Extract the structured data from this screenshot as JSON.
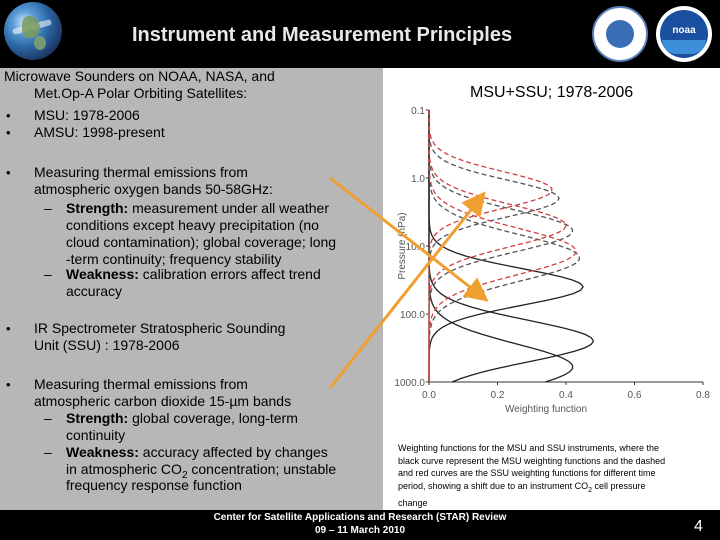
{
  "header": {
    "title": "Instrument and Measurement Principles",
    "logo_noaa": "noaa"
  },
  "left": {
    "intro_line1": "Microwave Sounders on NOAA, NASA, and",
    "intro_line2": "Met.Op-A Polar Orbiting Satellites:",
    "b1": "MSU:   1978-2006",
    "b2": "AMSU: 1998-present",
    "b3_line1": "Measuring thermal emissions from",
    "b3_line2": "atmospheric oxygen bands 50-58GHz:",
    "strength1_label": "Strength:",
    "strength1_l1": " measurement under all weather",
    "strength1_l2": "conditions except heavy precipitation (no",
    "strength1_l3": "cloud contamination); global coverage; long",
    "strength1_l4": "-term continuity; frequency stability",
    "weak1_label": "Weakness:",
    "weak1_l1": " calibration errors affect trend",
    "weak1_l2": "accuracy",
    "b4_line1": "IR Spectrometer Stratospheric Sounding",
    "b4_line2": "Unit (SSU) : 1978-2006",
    "b5_line1": "Measuring thermal emissions from",
    "b5_line2": "atmospheric carbon dioxide 15-µm bands",
    "strength2_label": "Strength:",
    "strength2_l1": " global coverage, long-term",
    "strength2_l2": "continuity",
    "weak2_label": "Weakness:",
    "weak2_l1": " accuracy affected by changes",
    "weak2_l2a": "in atmospheric CO",
    "weak2_l2sub": "2",
    "weak2_l2b": " concentration; unstable",
    "weak2_l3": "frequency response function",
    "bullet_glyph": "•",
    "dash_glyph": "–"
  },
  "chart": {
    "heading": "MSU+SSU; 1978-2006",
    "y_ticks": [
      "0.1",
      "1.0",
      "10.0",
      "100.0",
      "1000.0"
    ],
    "x_ticks": [
      "0.0",
      "0.2",
      "0.4",
      "0.6",
      "0.8"
    ],
    "ylabel": "Pressure (hPa)",
    "xlabel": "Weighting function"
  },
  "chart_data": {
    "type": "line",
    "ylabel": "Pressure (hPa)",
    "xlabel": "Weighting function",
    "xlim": [
      0.0,
      0.8
    ],
    "ylim": [
      1000.0,
      0.1
    ],
    "y_scale": "log",
    "series": [
      {
        "style": "solid black",
        "peaks": [
          {
            "x": 0.45,
            "y": 40
          },
          {
            "x": 0.48,
            "y": 250
          },
          {
            "x": 0.42,
            "y": 600
          }
        ]
      },
      {
        "style": "dashed black",
        "peaks": [
          {
            "x": 0.38,
            "y": 2.0
          },
          {
            "x": 0.42,
            "y": 6.0
          },
          {
            "x": 0.44,
            "y": 15.0
          }
        ]
      },
      {
        "style": "dashed red",
        "peaks": [
          {
            "x": 0.36,
            "y": 1.5
          },
          {
            "x": 0.4,
            "y": 5.0
          },
          {
            "x": 0.43,
            "y": 12.0
          }
        ]
      }
    ]
  },
  "caption": {
    "line1": "Weighting functions for the MSU and SSU instruments, where the",
    "line2": "black curve represent the MSU weighting functions and the dashed",
    "line3": "and red curves are the SSU weighting functions for different time",
    "line4a": "period, showing a shift due to an instrument CO",
    "line4sub": "2",
    "line4b": " cell pressure",
    "line5": "change"
  },
  "footer": {
    "line1": "Center for Satellite Applications and Research (STAR) Review",
    "line2": "09 – 11 March 2010",
    "page": "4"
  },
  "colors": {
    "left_panel": "#b7b7b7",
    "arrow": "#f0a030",
    "ssu_red": "#d04040"
  }
}
